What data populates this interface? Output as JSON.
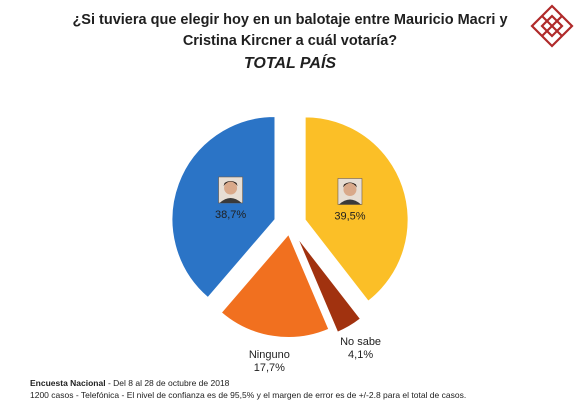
{
  "header": {
    "title_line1": "¿Si tuviera que elegir hoy en un balotaje entre Mauricio Macri y",
    "title_line2": "Cristina Kircner a cuál votaría?",
    "subtitle": "TOTAL PAÍS"
  },
  "chart_data": {
    "type": "pie",
    "exploded": true,
    "slices": [
      {
        "label": "",
        "value": 38.7,
        "value_label": "38,7%",
        "color": "#2b74c6",
        "icon": "kirchner-portrait"
      },
      {
        "label": "",
        "value": 39.5,
        "value_label": "39,5%",
        "color": "#fbbf27",
        "icon": "macri-portrait"
      },
      {
        "label": "No sabe",
        "value": 4.1,
        "value_label": "4,1%",
        "color": "#a1320f"
      },
      {
        "label": "Ninguno",
        "value": 17.7,
        "value_label": "17,7%",
        "color": "#f1701f"
      }
    ]
  },
  "footer": {
    "line1_bold": "Encuesta Nacional",
    "line1_rest": " - Del 8 al 28 de octubre de 2018",
    "line2": "1200 casos - Telefónica - El nivel de confianza es de 95,5% y el margen de error es de +/-2.8 para el total de casos."
  },
  "colors": {
    "logo": "#b02a2a"
  }
}
